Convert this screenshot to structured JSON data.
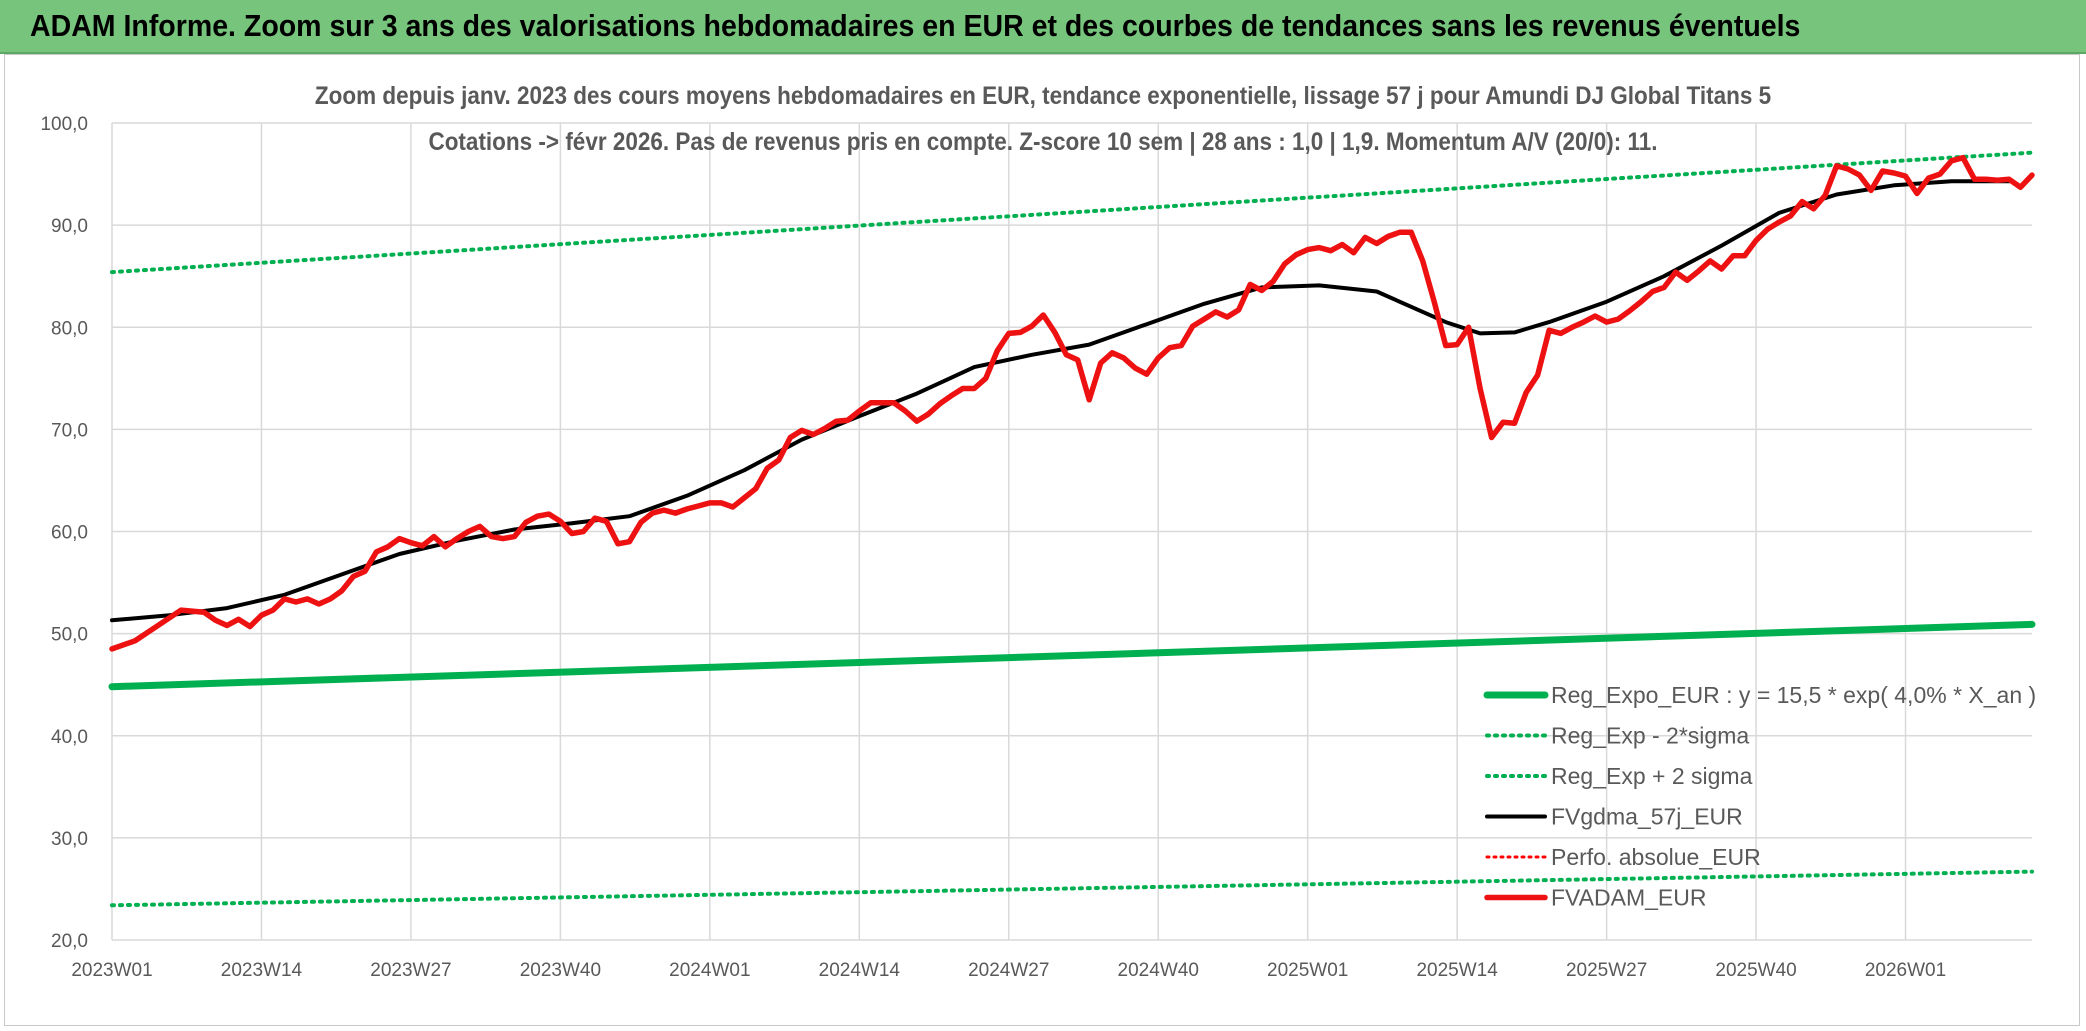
{
  "banner": {
    "title": "ADAM Informe. Zoom sur 3 ans des valorisations hebdomadaires en EUR et des courbes de tendances sans les revenus éventuels"
  },
  "colors": {
    "banner_bg": "#77c47d",
    "reg_expo": "#00b050",
    "sigma": "#00b050",
    "fvgdma": "#000000",
    "perfo": "#ff0000",
    "fvadam": "#ee1111"
  },
  "chart_data": {
    "type": "line",
    "title_line1": "Zoom depuis janv. 2023 des cours moyens hebdomadaires en EUR, tendance exponentielle, lissage 57 j pour Amundi DJ Global Titans 5",
    "title_line2": "Cotations -> févr 2026. Pas de revenus pris en compte. Z-score 10 sem | 28 ans : 1,0 | 1,9. Momentum A/V (20/0): 11.",
    "ylim": [
      20,
      100
    ],
    "yticks": [
      "20,0",
      "30,0",
      "40,0",
      "50,0",
      "60,0",
      "70,0",
      "80,0",
      "90,0",
      "100,0"
    ],
    "xlim": [
      0,
      167
    ],
    "xticks": [
      {
        "label": "2023W01",
        "week": 0
      },
      {
        "label": "2023W14",
        "week": 13
      },
      {
        "label": "2023W27",
        "week": 26
      },
      {
        "label": "2023W40",
        "week": 39
      },
      {
        "label": "2024W01",
        "week": 52
      },
      {
        "label": "2024W14",
        "week": 65
      },
      {
        "label": "2024W27",
        "week": 78
      },
      {
        "label": "2024W40",
        "week": 91
      },
      {
        "label": "2025W01",
        "week": 104
      },
      {
        "label": "2025W14",
        "week": 117
      },
      {
        "label": "2025W27",
        "week": 130
      },
      {
        "label": "2025W40",
        "week": 143
      },
      {
        "label": "2026W01",
        "week": 156
      }
    ],
    "grid": true,
    "legend_position": "bottom-right",
    "series": [
      {
        "name": "Reg_Expo_EUR : y = 15,5 * exp( 4,0% *  X_an )",
        "style": "solid-thick",
        "x": [
          0,
          167
        ],
        "y": [
          44.8,
          50.9
        ]
      },
      {
        "name": "Reg_Exp - 2*sigma",
        "style": "dotted",
        "x": [
          0,
          167
        ],
        "y": [
          23.4,
          26.7
        ]
      },
      {
        "name": "Reg_Exp + 2 sigma",
        "style": "dotted",
        "x": [
          0,
          167
        ],
        "y": [
          85.4,
          97.1
        ]
      },
      {
        "name": "FVgdma_57j_EUR",
        "style": "solid",
        "x": [
          0,
          5,
          10,
          15,
          20,
          25,
          30,
          35,
          40,
          45,
          50,
          55,
          60,
          65,
          70,
          75,
          80,
          85,
          90,
          95,
          100,
          105,
          110,
          113,
          116,
          119,
          122,
          125,
          130,
          135,
          140,
          145,
          150,
          155,
          160,
          165
        ],
        "y": [
          51.3,
          51.8,
          52.5,
          53.8,
          55.8,
          57.8,
          59.1,
          60.2,
          60.8,
          61.5,
          63.5,
          66.0,
          69.0,
          71.3,
          73.5,
          76.1,
          77.3,
          78.3,
          80.3,
          82.3,
          83.9,
          84.1,
          83.5,
          82.0,
          80.5,
          79.4,
          79.5,
          80.5,
          82.5,
          85.0,
          88.0,
          91.2,
          93.0,
          93.9,
          94.3,
          94.3
        ]
      },
      {
        "name": "Perfo. absolue_EUR",
        "style": "dotted",
        "x": [],
        "y": []
      },
      {
        "name": "FVADAM_EUR",
        "style": "solid-thick",
        "x": [
          0,
          2,
          4,
          6,
          8,
          9,
          10,
          11,
          12,
          13,
          14,
          15,
          16,
          17,
          18,
          19,
          20,
          21,
          22,
          23,
          24,
          25,
          26,
          27,
          28,
          29,
          30,
          31,
          32,
          33,
          34,
          35,
          36,
          37,
          38,
          39,
          40,
          41,
          42,
          43,
          44,
          45,
          46,
          47,
          48,
          49,
          50,
          51,
          52,
          53,
          54,
          55,
          56,
          57,
          58,
          59,
          60,
          61,
          62,
          63,
          64,
          65,
          66,
          67,
          68,
          69,
          70,
          71,
          72,
          73,
          74,
          75,
          76,
          77,
          78,
          79,
          80,
          81,
          82,
          83,
          84,
          85,
          86,
          87,
          88,
          89,
          90,
          91,
          92,
          93,
          94,
          95,
          96,
          97,
          98,
          99,
          100,
          101,
          102,
          103,
          104,
          105,
          106,
          107,
          108,
          109,
          110,
          111,
          112,
          113,
          114,
          115,
          116,
          117,
          118,
          119,
          120,
          121,
          122,
          123,
          124,
          125,
          126,
          127,
          128,
          129,
          130,
          131,
          132,
          133,
          134,
          135,
          136,
          137,
          138,
          139,
          140,
          141,
          142,
          143,
          144,
          145,
          146,
          147,
          148,
          149,
          150,
          151,
          152,
          153,
          154,
          155,
          156,
          157,
          158,
          159,
          160,
          161,
          162,
          163,
          164,
          165,
          166,
          167
        ],
        "y": [
          48.5,
          49.3,
          50.8,
          52.3,
          52.1,
          51.3,
          50.8,
          51.4,
          50.7,
          51.8,
          52.3,
          53.4,
          53.1,
          53.4,
          52.9,
          53.4,
          54.2,
          55.6,
          56.1,
          58.0,
          58.5,
          59.3,
          58.9,
          58.6,
          59.5,
          58.5,
          59.3,
          60.0,
          60.5,
          59.5,
          59.3,
          59.5,
          60.9,
          61.5,
          61.7,
          61.0,
          59.8,
          60.0,
          61.3,
          61.0,
          58.8,
          59.0,
          60.9,
          61.8,
          62.1,
          61.8,
          62.2,
          62.5,
          62.8,
          62.8,
          62.4,
          63.3,
          64.2,
          66.2,
          67.0,
          69.2,
          69.9,
          69.5,
          70.1,
          70.8,
          70.9,
          71.8,
          72.6,
          72.6,
          72.6,
          71.8,
          70.8,
          71.5,
          72.5,
          73.3,
          74.0,
          74.0,
          75.0,
          77.7,
          79.4,
          79.5,
          80.1,
          81.2,
          79.5,
          77.3,
          76.8,
          72.9,
          76.5,
          77.5,
          77.0,
          76.0,
          75.4,
          77.0,
          78.0,
          78.2,
          80.1,
          80.8,
          81.5,
          81.0,
          81.7,
          84.2,
          83.6,
          84.5,
          86.2,
          87.1,
          87.6,
          87.8,
          87.5,
          88.1,
          87.3,
          88.8,
          88.2,
          88.9,
          89.3,
          89.3,
          86.5,
          82.5,
          78.2,
          78.3,
          80.0,
          74.0,
          69.2,
          70.7,
          70.6,
          73.6,
          75.3,
          79.7,
          79.4,
          80.0,
          80.5,
          81.1,
          80.5,
          80.8,
          81.6,
          82.5,
          83.5,
          83.9,
          85.4,
          84.6,
          85.5,
          86.5,
          85.7,
          87.0,
          87.0,
          88.5,
          89.6,
          90.3,
          90.9,
          92.3,
          91.6,
          92.9,
          95.8,
          95.5,
          94.9,
          93.4,
          95.3,
          95.1,
          94.8,
          93.1,
          94.6,
          95.0,
          96.3,
          96.6,
          94.5,
          94.5,
          94.4,
          94.5,
          93.7,
          94.9
        ]
      }
    ]
  }
}
